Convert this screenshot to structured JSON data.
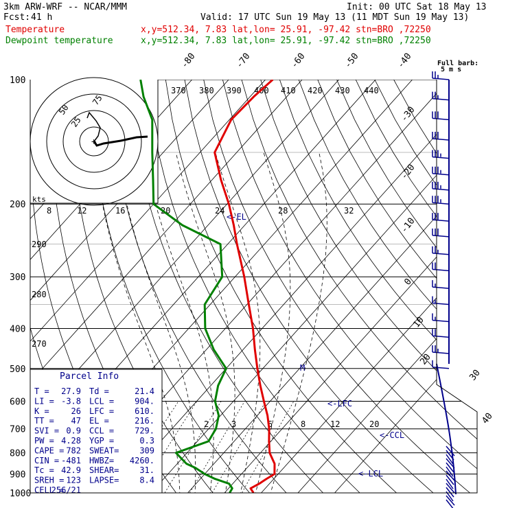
{
  "header": {
    "model": "3km ARW-WRF -- NCAR/MMM",
    "init": "Init: 00 UTC Sat 18 May 13",
    "fcst_label": "Fcst:",
    "fcst_value": "41 h",
    "valid": "Valid: 17 UTC Sun 19 May 13 (11 MDT Sun 19 May 13)",
    "temp_label": "Temperature",
    "temp_loc": "x,y=512.34,  7.83   lat,lon= 25.91, -97.42  stn=BRO ,72250",
    "dew_label": "Dewpoint temperature",
    "dew_loc": "x,y=512.34,  7.83   lat,lon= 25.91, -97.42  stn=BRO ,72250",
    "barb_legend_1": "Full barb:",
    "barb_legend_2": "5 m s"
  },
  "colors": {
    "temperature": "#e00000",
    "dewpoint": "#008000",
    "text": "#000000",
    "info": "#00008b",
    "legend_temp": "#e00000",
    "legend_dew": "#008000"
  },
  "chart_data": {
    "type": "line",
    "title": "Skew-T log-P sounding",
    "y_axis": {
      "label": "pressure (hPa)",
      "scale": "log",
      "ticks": [
        100,
        200,
        300,
        400,
        500,
        600,
        700,
        800,
        900,
        1000
      ]
    },
    "isotherm_labels": [
      "-80",
      "-70",
      "-60",
      "-50",
      "-40",
      "-30",
      "-20",
      "-10",
      "0",
      "10",
      "20",
      "30",
      "40"
    ],
    "theta_e_labels": [
      "370",
      "380",
      "390",
      "400",
      "410",
      "420",
      "430",
      "440"
    ],
    "dry_adiabat_labels": [
      "290",
      "280",
      "270"
    ],
    "mixing_ratio_labels": [
      "2",
      "3",
      "5",
      "8",
      "12",
      "20"
    ],
    "series": [
      {
        "name": "Temperature",
        "color": "#e00000",
        "units": "degC",
        "points": [
          [
            1000,
            27.9
          ],
          [
            975,
            26
          ],
          [
            950,
            27.2
          ],
          [
            925,
            28
          ],
          [
            900,
            29
          ],
          [
            850,
            26.5
          ],
          [
            800,
            22.5
          ],
          [
            750,
            19.5
          ],
          [
            700,
            16.5
          ],
          [
            650,
            12.8
          ],
          [
            600,
            8.3
          ],
          [
            550,
            3.5
          ],
          [
            500,
            -1.5
          ],
          [
            450,
            -6.8
          ],
          [
            400,
            -12.5
          ],
          [
            350,
            -19.5
          ],
          [
            300,
            -27.5
          ],
          [
            250,
            -37.5
          ],
          [
            225,
            -43
          ],
          [
            200,
            -49.5
          ],
          [
            175,
            -57.5
          ],
          [
            150,
            -66
          ],
          [
            125,
            -69.5
          ],
          [
            110,
            -69
          ],
          [
            100,
            -68
          ]
        ]
      },
      {
        "name": "Dewpoint temperature",
        "color": "#008000",
        "units": "degC",
        "points": [
          [
            1000,
            21.4
          ],
          [
            975,
            21
          ],
          [
            950,
            19
          ],
          [
            925,
            14
          ],
          [
            900,
            10
          ],
          [
            870,
            6
          ],
          [
            850,
            2.5
          ],
          [
            800,
            -3
          ],
          [
            750,
            3
          ],
          [
            700,
            2
          ],
          [
            650,
            -0.5
          ],
          [
            600,
            -5
          ],
          [
            550,
            -8
          ],
          [
            500,
            -10
          ],
          [
            450,
            -18
          ],
          [
            400,
            -25.5
          ],
          [
            350,
            -31.5
          ],
          [
            300,
            -33.5
          ],
          [
            250,
            -42
          ],
          [
            225,
            -57
          ],
          [
            200,
            -70
          ],
          [
            175,
            -76
          ],
          [
            150,
            -83
          ],
          [
            125,
            -91
          ],
          [
            110,
            -99
          ],
          [
            100,
            -104
          ]
        ]
      }
    ],
    "annotations": [
      "-EL",
      "-LFC",
      "-CCL",
      "-LCL",
      "M"
    ],
    "wind_barbs": [
      {
        "p": 100,
        "spd": 25,
        "dir": 290
      },
      {
        "p": 112,
        "spd": 25,
        "dir": 290
      },
      {
        "p": 125,
        "spd": 30,
        "dir": 290
      },
      {
        "p": 140,
        "spd": 30,
        "dir": 290
      },
      {
        "p": 155,
        "spd": 35,
        "dir": 285
      },
      {
        "p": 170,
        "spd": 35,
        "dir": 285
      },
      {
        "p": 185,
        "spd": 35,
        "dir": 285
      },
      {
        "p": 200,
        "spd": 35,
        "dir": 280
      },
      {
        "p": 220,
        "spd": 30,
        "dir": 280
      },
      {
        "p": 240,
        "spd": 30,
        "dir": 280
      },
      {
        "p": 265,
        "spd": 25,
        "dir": 280
      },
      {
        "p": 290,
        "spd": 20,
        "dir": 285
      },
      {
        "p": 320,
        "spd": 15,
        "dir": 290
      },
      {
        "p": 350,
        "spd": 15,
        "dir": 295
      },
      {
        "p": 385,
        "spd": 15,
        "dir": 300
      },
      {
        "p": 420,
        "spd": 20,
        "dir": 300
      },
      {
        "p": 460,
        "spd": 25,
        "dir": 305
      },
      {
        "p": 500,
        "spd": 10,
        "dir": 310
      }
    ],
    "hodograph": {
      "ring_labels": [
        "75",
        "50",
        "25"
      ],
      "kts_label": "kts"
    },
    "parcel_info": {
      "title": "Parcel Info",
      "rows": [
        [
          "T  =",
          "27.9",
          "Td =",
          "21.4"
        ],
        [
          "LI =",
          "-3.8",
          "LCL =",
          "904."
        ],
        [
          "K  =",
          "26",
          "LFC =",
          "610."
        ],
        [
          "TT =",
          "47",
          "EL  =",
          "216."
        ],
        [
          "SVI =",
          "0.9",
          "CCL =",
          "729."
        ],
        [
          "PW =",
          "4.28",
          "YGP =",
          "0.3"
        ],
        [
          "CAPE =",
          "782",
          "SWEAT=",
          "309"
        ],
        [
          "CIN =",
          "-481",
          "HWBZ=",
          "4260."
        ],
        [
          "Tc =",
          "42.9",
          "SHEAR=",
          "31."
        ],
        [
          "SREH =",
          "123",
          "LAPSE=",
          "8.4"
        ],
        [
          "CELL =",
          "256/21",
          "",
          ""
        ]
      ]
    }
  }
}
